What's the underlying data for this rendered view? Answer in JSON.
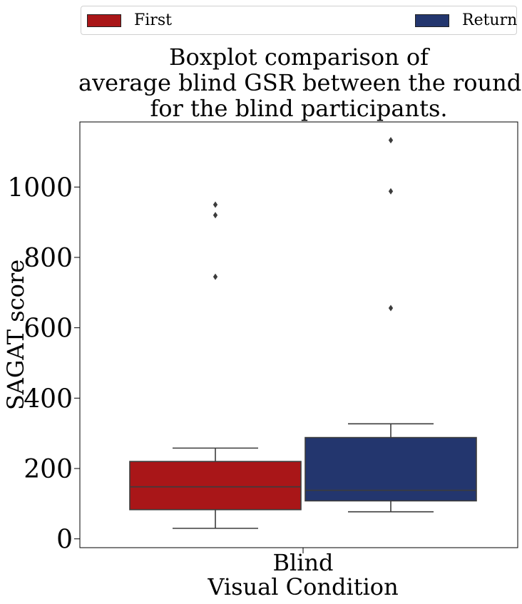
{
  "chart_data": {
    "type": "boxplot",
    "title_lines": [
      "Boxplot comparison of",
      "average blind GSR between the rounds",
      "for the blind participants."
    ],
    "xlabel": "Visual Condition",
    "ylabel": "SAGAT score",
    "categories": [
      "Blind"
    ],
    "ylim": [
      -25,
      1185
    ],
    "yticks": [
      0,
      200,
      400,
      600,
      800,
      1000
    ],
    "legend": {
      "placement": "top",
      "entries": [
        "First",
        "Return"
      ]
    },
    "series": [
      {
        "name": "First",
        "color": "#a91618",
        "whisker_low": 30,
        "q1": 83,
        "median": 148,
        "q3": 220,
        "whisker_high": 258,
        "outliers": [
          950,
          920,
          745
        ]
      },
      {
        "name": "Return",
        "color": "#23366e",
        "whisker_low": 77,
        "q1": 108,
        "median": 138,
        "q3": 288,
        "whisker_high": 327,
        "outliers": [
          1133,
          988,
          656
        ]
      }
    ]
  }
}
